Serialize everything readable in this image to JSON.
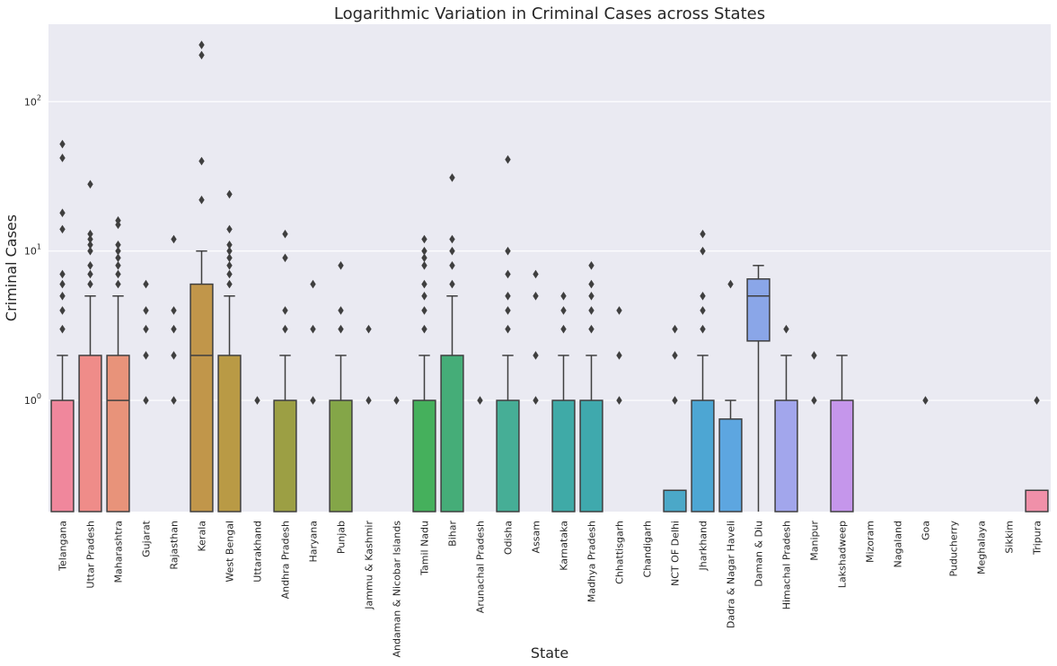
{
  "chart_data": {
    "type": "box",
    "title": "Logarithmic Variation in Criminal Cases across States",
    "xlabel": "State",
    "ylabel": "Criminal Cases",
    "yscale": "log",
    "ylim": [
      0.18,
      330
    ],
    "yticks": [
      {
        "value": 1,
        "label_base": "10",
        "label_exp": "0"
      },
      {
        "value": 10,
        "label_base": "10",
        "label_exp": "1"
      },
      {
        "value": 100,
        "label_base": "10",
        "label_exp": "2"
      }
    ],
    "grid": true,
    "background": "#EAEAF2",
    "box_edge_color": "#3f3f3f",
    "categories": [
      {
        "name": "Telangana",
        "color": "#F0879C",
        "q1": null,
        "median": null,
        "q3": 1,
        "whisker_low": null,
        "whisker_high": 2,
        "outliers": [
          3,
          4,
          5,
          6,
          7,
          14,
          18,
          42,
          52
        ]
      },
      {
        "name": "Uttar Pradesh",
        "color": "#EF8C89",
        "q1": null,
        "median": null,
        "q3": 2,
        "whisker_low": null,
        "whisker_high": 5,
        "outliers": [
          6,
          7,
          8,
          10,
          11,
          12,
          13,
          28
        ]
      },
      {
        "name": "Maharashtra",
        "color": "#E8937A",
        "q1": null,
        "median": 1,
        "q3": 2,
        "whisker_low": null,
        "whisker_high": 5,
        "outliers": [
          6,
          7,
          8,
          9,
          10,
          11,
          15,
          16
        ]
      },
      {
        "name": "Gujarat",
        "color": "#D59B65",
        "q1": null,
        "median": null,
        "q3": null,
        "whisker_low": null,
        "whisker_high": null,
        "outliers": [
          1,
          2,
          3,
          4,
          6
        ]
      },
      {
        "name": "Rajasthan",
        "color": "#C89F5E",
        "q1": null,
        "median": null,
        "q3": null,
        "whisker_low": null,
        "whisker_high": null,
        "outliers": [
          1,
          2,
          3,
          4,
          12
        ]
      },
      {
        "name": "Kerala",
        "color": "#C1964A",
        "q1": null,
        "median": 2,
        "q3": 6,
        "whisker_low": null,
        "whisker_high": 10,
        "outliers": [
          22,
          40,
          205,
          240
        ]
      },
      {
        "name": "West Bengal",
        "color": "#B99A45",
        "q1": null,
        "median": null,
        "q3": 2,
        "whisker_low": null,
        "whisker_high": 5,
        "outliers": [
          6,
          7,
          8,
          9,
          10,
          11,
          14,
          24
        ]
      },
      {
        "name": "Uttarakhand",
        "color": "#A8A042",
        "q1": null,
        "median": null,
        "q3": null,
        "whisker_low": null,
        "whisker_high": null,
        "outliers": [
          1
        ]
      },
      {
        "name": "Andhra Pradesh",
        "color": "#9C9F44",
        "q1": null,
        "median": null,
        "q3": 1,
        "whisker_low": null,
        "whisker_high": 2,
        "outliers": [
          3,
          4,
          9,
          13
        ]
      },
      {
        "name": "Haryana",
        "color": "#8EA645",
        "q1": null,
        "median": null,
        "q3": null,
        "whisker_low": null,
        "whisker_high": null,
        "outliers": [
          1,
          3,
          6
        ]
      },
      {
        "name": "Punjab",
        "color": "#84A648",
        "q1": null,
        "median": null,
        "q3": 1,
        "whisker_low": null,
        "whisker_high": 2,
        "outliers": [
          3,
          4,
          8
        ]
      },
      {
        "name": "Jammu & Kashmir",
        "color": "#6BAF4A",
        "q1": null,
        "median": null,
        "q3": null,
        "whisker_low": null,
        "whisker_high": null,
        "outliers": [
          1,
          3
        ]
      },
      {
        "name": "Andaman & Nicobar Islands",
        "color": "#55B050",
        "q1": null,
        "median": null,
        "q3": null,
        "whisker_low": null,
        "whisker_high": null,
        "outliers": [
          1
        ]
      },
      {
        "name": "Tamil Nadu",
        "color": "#45B05C",
        "q1": null,
        "median": null,
        "q3": 1,
        "whisker_low": null,
        "whisker_high": 2,
        "outliers": [
          3,
          4,
          5,
          6,
          8,
          9,
          10,
          12
        ]
      },
      {
        "name": "Bihar",
        "color": "#45AD78",
        "q1": null,
        "median": null,
        "q3": 2,
        "whisker_low": null,
        "whisker_high": 5,
        "outliers": [
          6,
          8,
          10,
          12,
          31
        ]
      },
      {
        "name": "Arunachal Pradesh",
        "color": "#46AD8C",
        "q1": null,
        "median": null,
        "q3": null,
        "whisker_low": null,
        "whisker_high": null,
        "outliers": [
          1
        ]
      },
      {
        "name": "Odisha",
        "color": "#46AE96",
        "q1": null,
        "median": null,
        "q3": 1,
        "whisker_low": null,
        "whisker_high": 2,
        "outliers": [
          3,
          4,
          5,
          7,
          10,
          41
        ]
      },
      {
        "name": "Assam",
        "color": "#48ADA2",
        "q1": null,
        "median": null,
        "q3": null,
        "whisker_low": null,
        "whisker_high": null,
        "outliers": [
          1,
          2,
          5,
          7
        ]
      },
      {
        "name": "Karnataka",
        "color": "#3FAAA7",
        "q1": null,
        "median": null,
        "q3": 1,
        "whisker_low": null,
        "whisker_high": 2,
        "outliers": [
          3,
          4,
          5
        ]
      },
      {
        "name": "Madhya Pradesh",
        "color": "#3FA9AD",
        "q1": null,
        "median": null,
        "q3": 1,
        "whisker_low": null,
        "whisker_high": 2,
        "outliers": [
          3,
          4,
          5,
          6,
          8
        ]
      },
      {
        "name": "Chhattisgarh",
        "color": "#44A9B7",
        "q1": null,
        "median": null,
        "q3": null,
        "whisker_low": null,
        "whisker_high": null,
        "outliers": [
          1,
          2,
          4
        ]
      },
      {
        "name": "Chandigarh",
        "color": "#47A8C0",
        "q1": null,
        "median": null,
        "q3": null,
        "whisker_low": null,
        "whisker_high": null,
        "outliers": []
      },
      {
        "name": "NCT OF Delhi",
        "color": "#4BA8C8",
        "q1": null,
        "median": null,
        "q3": 0.25,
        "whisker_low": null,
        "whisker_high": null,
        "outliers": [
          1,
          2,
          3
        ]
      },
      {
        "name": "Jharkhand",
        "color": "#4DA6D3",
        "q1": null,
        "median": null,
        "q3": 1,
        "whisker_low": null,
        "whisker_high": 2,
        "outliers": [
          3,
          4,
          5,
          10,
          13
        ]
      },
      {
        "name": "Dadra & Nagar Haveli",
        "color": "#5DA6E0",
        "q1": null,
        "median": null,
        "q3": 0.75,
        "whisker_low": null,
        "whisker_high": 1,
        "outliers": [
          6
        ]
      },
      {
        "name": "Daman & Diu",
        "color": "#8AA6E8",
        "q1": 2.5,
        "median": 5,
        "q3": 6.5,
        "whisker_low": 0,
        "whisker_high": 8,
        "outliers": []
      },
      {
        "name": "Himachal Pradesh",
        "color": "#A2A6EC",
        "q1": null,
        "median": null,
        "q3": 1,
        "whisker_low": null,
        "whisker_high": 2,
        "outliers": [
          3
        ]
      },
      {
        "name": "Manipur",
        "color": "#B59EEB",
        "q1": null,
        "median": null,
        "q3": null,
        "whisker_low": null,
        "whisker_high": null,
        "outliers": [
          1,
          2
        ]
      },
      {
        "name": "Lakshadweep",
        "color": "#C596EB",
        "q1": null,
        "median": null,
        "q3": 1,
        "whisker_low": null,
        "whisker_high": 2,
        "outliers": []
      },
      {
        "name": "Mizoram",
        "color": "#D68FE6",
        "q1": null,
        "median": null,
        "q3": null,
        "whisker_low": null,
        "whisker_high": null,
        "outliers": []
      },
      {
        "name": "Nagaland",
        "color": "#E38CD8",
        "q1": null,
        "median": null,
        "q3": null,
        "whisker_low": null,
        "whisker_high": null,
        "outliers": []
      },
      {
        "name": "Goa",
        "color": "#E98BC7",
        "q1": null,
        "median": null,
        "q3": null,
        "whisker_low": null,
        "whisker_high": null,
        "outliers": [
          1
        ]
      },
      {
        "name": "Puducherry",
        "color": "#EC8CBA",
        "q1": null,
        "median": null,
        "q3": null,
        "whisker_low": null,
        "whisker_high": null,
        "outliers": []
      },
      {
        "name": "Meghalaya",
        "color": "#EE8BB0",
        "q1": null,
        "median": null,
        "q3": null,
        "whisker_low": null,
        "whisker_high": null,
        "outliers": []
      },
      {
        "name": "Sikkim",
        "color": "#EF8BA7",
        "q1": null,
        "median": null,
        "q3": null,
        "whisker_low": null,
        "whisker_high": null,
        "outliers": []
      },
      {
        "name": "Tripura",
        "color": "#F090A9",
        "q1": null,
        "median": null,
        "q3": 0.25,
        "whisker_low": null,
        "whisker_high": null,
        "outliers": [
          1
        ]
      }
    ]
  }
}
